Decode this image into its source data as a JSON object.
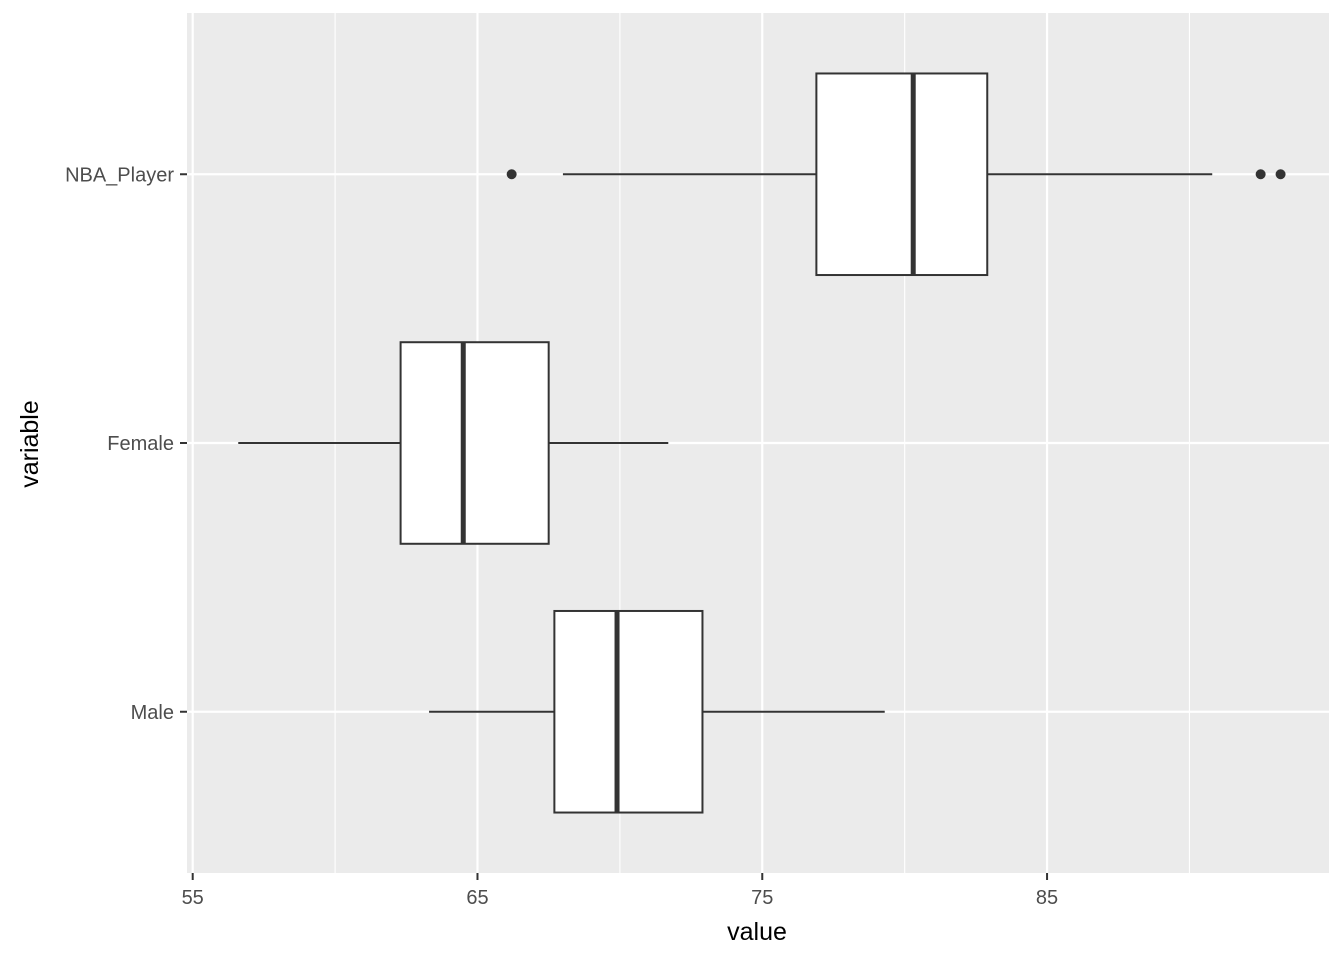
{
  "chart_data": {
    "type": "boxplot",
    "orientation": "horizontal",
    "title": "",
    "xlabel": "value",
    "ylabel": "variable",
    "xlim": [
      54.8,
      94.9
    ],
    "x_ticks": [
      55,
      65,
      75,
      85
    ],
    "grid": true,
    "legend": "none",
    "colors": {
      "panel_background": "#ebebeb",
      "grid_line": "#ffffff",
      "box_fill": "#ffffff",
      "box_stroke": "#333333",
      "tick_text": "#4d4d4d",
      "title_text": "#000000"
    },
    "categories": [
      "Male",
      "Female",
      "NBA_Player"
    ],
    "series": [
      {
        "category": "Male",
        "whisker_low": 63.3,
        "q1": 67.7,
        "median": 69.9,
        "q3": 72.9,
        "whisker_high": 79.3,
        "outliers": []
      },
      {
        "category": "Female",
        "whisker_low": 56.6,
        "q1": 62.3,
        "median": 64.5,
        "q3": 67.5,
        "whisker_high": 71.7,
        "outliers": []
      },
      {
        "category": "NBA_Player",
        "whisker_low": 68.0,
        "q1": 76.9,
        "median": 80.3,
        "q3": 82.9,
        "whisker_high": 90.8,
        "outliers": [
          66.2,
          92.5,
          93.2
        ]
      }
    ]
  }
}
